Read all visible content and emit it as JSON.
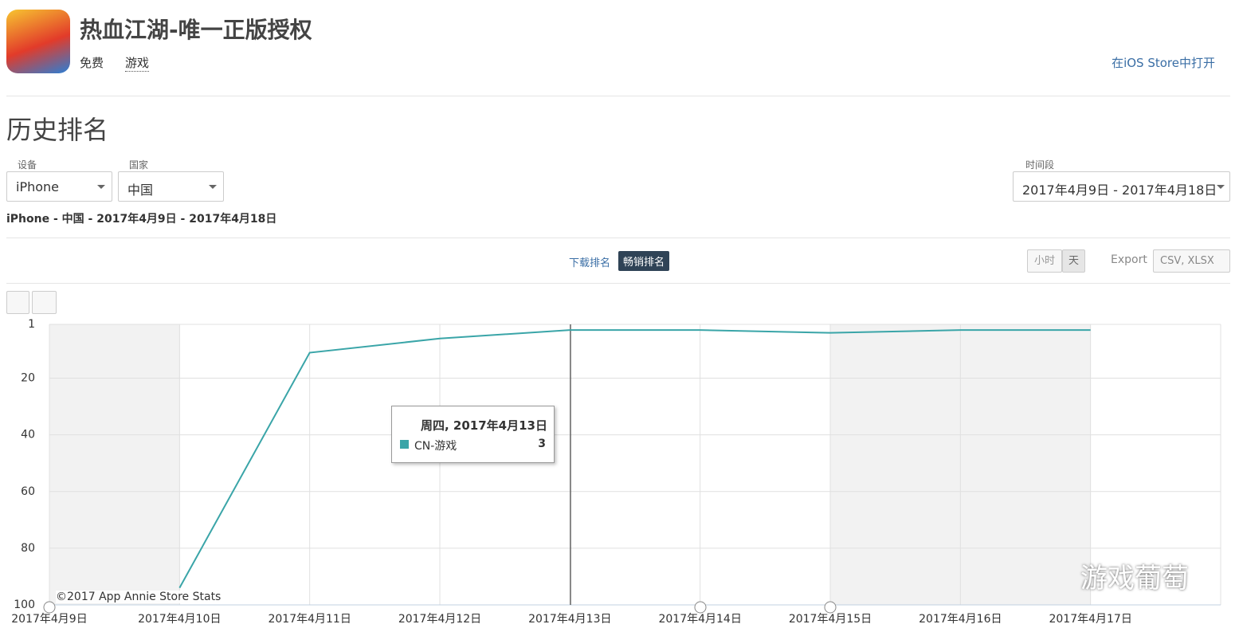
{
  "header": {
    "app_title": "热血江湖-唯一正版授权",
    "price": "免费",
    "genre": "游戏",
    "store_link": "在iOS Store中打开"
  },
  "section_title": "历史排名",
  "filters": {
    "device_label": "设备",
    "device": "iPhone",
    "country_label": "国家",
    "country": "中国",
    "period_label": "时间段",
    "period": "2017年4月9日 - 2017年4月18日"
  },
  "summary": "iPhone - 中国 - 2017年4月9日 - 2017年4月18日",
  "tabs": [
    "下载排名",
    "畅销排名"
  ],
  "granularity": [
    "小时",
    "天"
  ],
  "export": {
    "label": "Export",
    "formats": "CSV, XLSX"
  },
  "copyright": "©2017 App Annie Store Stats",
  "watermark": "游戏葡萄",
  "tooltip": {
    "title": "周四, 2017年4月13日"
  },
  "chart_data": {
    "type": "line",
    "categories": [
      "2017年4月9日",
      "2017年4月10日",
      "2017年4月11日",
      "2017年4月12日",
      "2017年4月13日",
      "2017年4月14日",
      "2017年4月15日",
      "2017年4月16日",
      "2017年4月17日",
      null
    ],
    "series": [
      {
        "name": "CN-游戏",
        "color": "#3aa5a8",
        "values": [
          null,
          94,
          11,
          6,
          3,
          3,
          4,
          3,
          3,
          null
        ]
      }
    ],
    "ylim": [
      1,
      100
    ],
    "y_inverted": true,
    "yticks": [
      1,
      20,
      40,
      60,
      80,
      100
    ],
    "grid": true
  }
}
